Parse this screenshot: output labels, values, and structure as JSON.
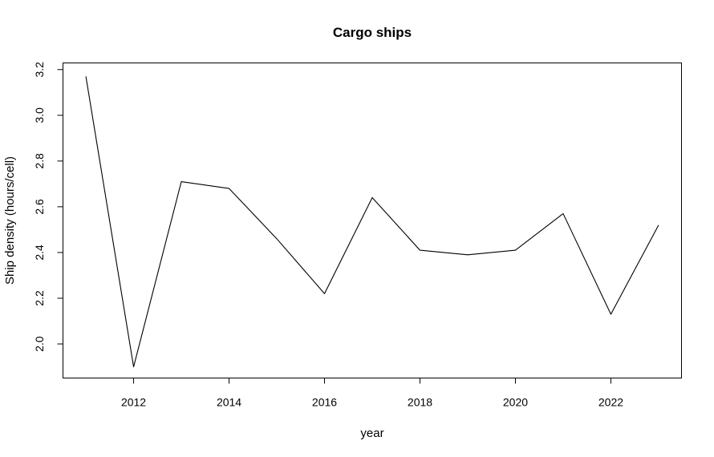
{
  "chart_data": {
    "type": "line",
    "title": "Cargo ships",
    "xlabel": "year",
    "ylabel": "Ship density (hours/cell)",
    "x": [
      2011,
      2012,
      2013,
      2014,
      2015,
      2016,
      2017,
      2018,
      2019,
      2020,
      2021,
      2022,
      2023
    ],
    "series": [
      {
        "values": [
          3.17,
          1.9,
          2.71,
          2.68,
          2.46,
          2.22,
          2.64,
          2.41,
          2.39,
          2.41,
          2.57,
          2.13,
          2.52
        ],
        "color": "#000000"
      }
    ],
    "xlim": [
      2010.52,
      2023.48
    ],
    "ylim": [
      1.851,
      3.229
    ],
    "x_ticks": [
      2012,
      2014,
      2016,
      2018,
      2020,
      2022
    ],
    "y_ticks": [
      "2.0",
      "2.2",
      "2.4",
      "2.6",
      "2.8",
      "3.0",
      "3.2"
    ],
    "grid": false,
    "legend": "none"
  }
}
